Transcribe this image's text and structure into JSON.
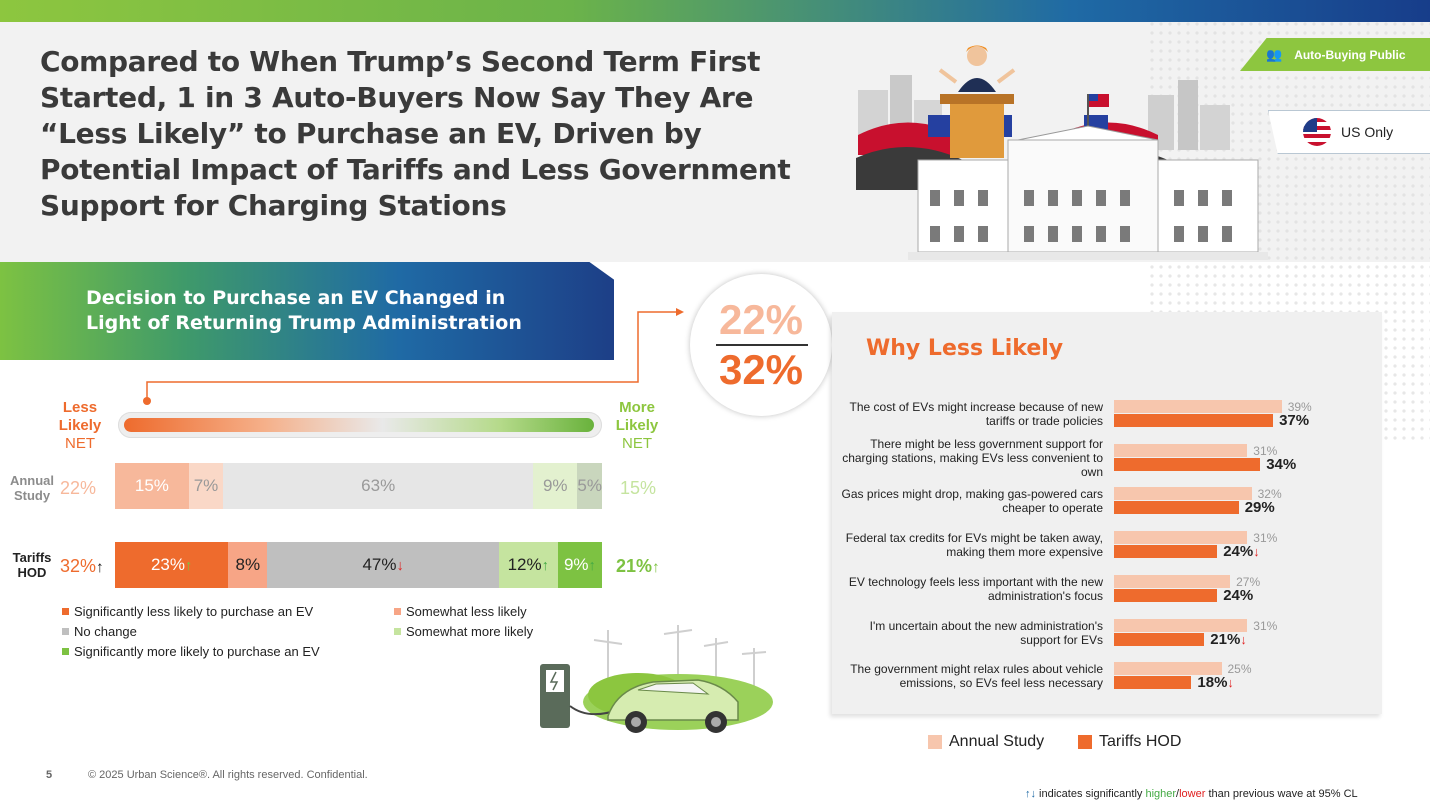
{
  "title": "Compared to When Trump’s Second Term First Started, 1 in 3 Auto-Buyers Now Say They Are “Less Likely” to Purchase an EV, Driven by Potential Impact of Tariffs and Less Government Support for Charging Stations",
  "badges": {
    "audience": "Auto-Buying Public",
    "region": "US Only"
  },
  "section": {
    "title": "Decision to Purchase an EV Changed in Light of Returning Trump Administration"
  },
  "scale": {
    "less_1": "Less",
    "less_2": "Likely",
    "less_net": "NET",
    "more_1": "More",
    "more_2": "Likely",
    "more_net": "NET"
  },
  "big_numbers": {
    "annual": "22%",
    "tariffs": "32%"
  },
  "why": {
    "title": "Why Less Likely"
  },
  "legend_left": [
    {
      "label": "Significantly less likely to purchase an EV",
      "color": "#ee6b2d"
    },
    {
      "label": "Somewhat less likely",
      "color": "#f7a586"
    },
    {
      "label": "No change",
      "color": "#bfbfbf"
    },
    {
      "label": "Somewhat more likely",
      "color": "#c5e49f"
    },
    {
      "label": "Significantly more likely to purchase an EV",
      "color": "#7dc242"
    }
  ],
  "legend_right": [
    {
      "label": "Annual Study",
      "color": "#f7c6ad"
    },
    {
      "label": "Tariffs HOD",
      "color": "#ee6b2d"
    }
  ],
  "footer": {
    "page": "5",
    "copyright": "© 2025 Urban Science®. All rights reserved. Confidential.",
    "note_arrows": "↑↓",
    "note_a": " indicates significantly ",
    "note_higher": "higher",
    "note_slash": "/",
    "note_lower": "lower",
    "note_b": " than previous wave at 95% CL"
  },
  "chart_data": [
    {
      "type": "bar",
      "stacked": true,
      "orientation": "horizontal",
      "categories": [
        "Annual Study",
        "Tariffs HOD"
      ],
      "category_labels": [
        "Annual\nStudy",
        "Tariffs\nHOD"
      ],
      "less_likely_net": [
        "22%",
        "32%↑"
      ],
      "more_likely_net": [
        "15%",
        "21%↑"
      ],
      "series": [
        {
          "name": "Significantly less likely to purchase an EV",
          "values": [
            15,
            23
          ],
          "labels": [
            "15%",
            "23%↑"
          ],
          "colors": [
            "#f7b89b",
            "#ee6b2d"
          ],
          "text_colors": [
            "#ffffff",
            "#ffffff"
          ]
        },
        {
          "name": "Somewhat less likely",
          "values": [
            7,
            8
          ],
          "labels": [
            "7%",
            "8%"
          ],
          "colors": [
            "#fad8c7",
            "#f7a586"
          ],
          "text_colors": [
            "#999999",
            "#222222"
          ]
        },
        {
          "name": "No change",
          "values": [
            63,
            47
          ],
          "labels": [
            "63%",
            "47%↓"
          ],
          "colors": [
            "#e6e6e6",
            "#bfbfbf"
          ],
          "text_colors": [
            "#999999",
            "#222222"
          ]
        },
        {
          "name": "Somewhat more likely",
          "values": [
            9,
            12
          ],
          "labels": [
            "9%",
            "12%↑"
          ],
          "colors": [
            "#e3f1cf",
            "#c5e49f"
          ],
          "text_colors": [
            "#999999",
            "#222222"
          ]
        },
        {
          "name": "Significantly more likely to purchase an EV",
          "values": [
            5,
            9
          ],
          "labels": [
            "5%",
            "9%↑"
          ],
          "colors": [
            "#c9d6bd",
            "#7dc242"
          ],
          "text_colors": [
            "#999999",
            "#ffffff"
          ]
        }
      ]
    },
    {
      "type": "bar",
      "orientation": "horizontal",
      "title": "Why Less Likely",
      "categories": [
        "The cost of EVs might increase because of new tariffs or trade policies",
        "There might be less government support for charging stations, making EVs less convenient to own",
        "Gas prices might drop, making gas-powered cars cheaper to operate",
        "Federal tax credits for EVs might be taken away, making them more expensive",
        "EV technology feels less important with the new administration's focus",
        "I'm uncertain about the new administration's support for EVs",
        "The government might relax rules about vehicle emissions, so EVs feel less necessary"
      ],
      "category_lines": [
        [
          "The cost of EVs might increase because of new",
          "tariffs or trade policies"
        ],
        [
          "There might be less government support for",
          "charging stations, making EVs less convenient to",
          "own"
        ],
        [
          "Gas prices might drop, making gas-powered cars",
          "cheaper to operate"
        ],
        [
          "Federal tax credits for EVs might be taken away,",
          "making them more expensive"
        ],
        [
          "EV technology feels less important with the new",
          "administration's focus"
        ],
        [
          "I'm uncertain about the new administration's",
          "support for EVs"
        ],
        [
          "The government might relax rules about vehicle",
          "emissions, so EVs feel less necessary"
        ]
      ],
      "series": [
        {
          "name": "Annual Study",
          "values": [
            39,
            31,
            32,
            31,
            27,
            31,
            25
          ],
          "labels": [
            "39%",
            "31%",
            "32%",
            "31%",
            "27%",
            "31%",
            "25%"
          ],
          "color": "#f7c6ad"
        },
        {
          "name": "Tariffs HOD",
          "values": [
            37,
            34,
            29,
            24,
            24,
            21,
            18
          ],
          "labels": [
            "37%",
            "34%",
            "29%",
            "24%↓",
            "24%",
            "21%↓",
            "18%↓"
          ],
          "color": "#ee6b2d"
        }
      ],
      "legend": "bottom"
    }
  ]
}
